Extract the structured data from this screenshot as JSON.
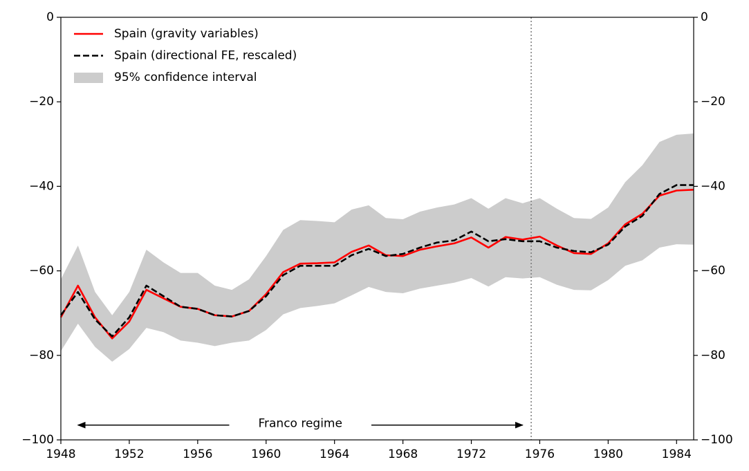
{
  "chart_data": {
    "type": "line",
    "x": [
      1948,
      1949,
      1950,
      1951,
      1952,
      1953,
      1954,
      1955,
      1956,
      1957,
      1958,
      1959,
      1960,
      1961,
      1962,
      1963,
      1964,
      1965,
      1966,
      1967,
      1968,
      1969,
      1970,
      1971,
      1972,
      1973,
      1974,
      1975,
      1976,
      1977,
      1978,
      1979,
      1980,
      1981,
      1982,
      1983,
      1984,
      1985
    ],
    "series": [
      {
        "name": "Spain (gravity variables)",
        "color": "#ff0000",
        "dash": false,
        "values": [
          -71,
          -63.5,
          -71,
          -76,
          -72,
          -64.5,
          -66.5,
          -68.5,
          -69,
          -70.5,
          -70.8,
          -69.5,
          -65.5,
          -60.3,
          -58.3,
          -58.2,
          -58,
          -55.5,
          -54,
          -56.3,
          -56.5,
          -55,
          -54.2,
          -53.5,
          -52.1,
          -54.5,
          -52,
          -52.6,
          -51.9,
          -54,
          -55.8,
          -56,
          -53.5,
          -49,
          -46.5,
          -42.2,
          -41,
          -40.8
        ]
      },
      {
        "name": "Spain (directional FE, rescaled)",
        "color": "#000000",
        "dash": true,
        "values": [
          -70.5,
          -65,
          -71.5,
          -75.5,
          -71,
          -63.5,
          -66,
          -68.5,
          -69,
          -70.5,
          -70.8,
          -69.5,
          -66,
          -61,
          -58.8,
          -58.8,
          -58.8,
          -56.3,
          -54.8,
          -56.5,
          -56,
          -54.5,
          -53.3,
          -52.8,
          -50.7,
          -53,
          -52.5,
          -53,
          -53,
          -54.5,
          -55.3,
          -55.6,
          -53.8,
          -49.5,
          -47,
          -41.8,
          -39.7,
          -39.7
        ]
      }
    ],
    "band": {
      "name": "95% confidence interval",
      "color": "#cccccc",
      "upper": [
        -62,
        -54,
        -65,
        -70.5,
        -65,
        -55,
        -58,
        -60.5,
        -60.5,
        -63.5,
        -64.5,
        -62,
        -56.5,
        -50.3,
        -48,
        -48.2,
        -48.5,
        -45.5,
        -44.5,
        -47.5,
        -47.8,
        -46,
        -45,
        -44.3,
        -42.8,
        -45.3,
        -42.8,
        -44,
        -42.8,
        -45.3,
        -47.5,
        -47.7,
        -45,
        -39,
        -35,
        -29.5,
        -27.8,
        -27.5
      ],
      "lower": [
        -79,
        -72.5,
        -78,
        -81.5,
        -78.5,
        -73.5,
        -74.5,
        -76.5,
        -77,
        -77.8,
        -77,
        -76.5,
        -74,
        -70.3,
        -68.8,
        -68.3,
        -67.7,
        -65.8,
        -63.8,
        -65,
        -65.3,
        -64.2,
        -63.5,
        -62.8,
        -61.7,
        -63.7,
        -61.5,
        -61.8,
        -61.5,
        -63.3,
        -64.5,
        -64.6,
        -62.2,
        -58.8,
        -57.5,
        -54.5,
        -53.7,
        -53.8
      ]
    },
    "xlim": [
      1948,
      1985
    ],
    "ylim": [
      -100,
      0
    ],
    "xticks": [
      1948,
      1952,
      1956,
      1960,
      1964,
      1968,
      1972,
      1976,
      1980,
      1984
    ],
    "yticks": [
      {
        "value": -100,
        "label": "−100"
      },
      {
        "value": -80,
        "label": "−80"
      },
      {
        "value": -60,
        "label": "−60"
      },
      {
        "value": -40,
        "label": "−40"
      },
      {
        "value": -20,
        "label": "−20"
      },
      0
    ],
    "right_axis": true,
    "legend": "upper left",
    "vline": 1975.5,
    "annotation": {
      "text": "Franco regime",
      "span": [
        1949,
        1975
      ]
    }
  }
}
